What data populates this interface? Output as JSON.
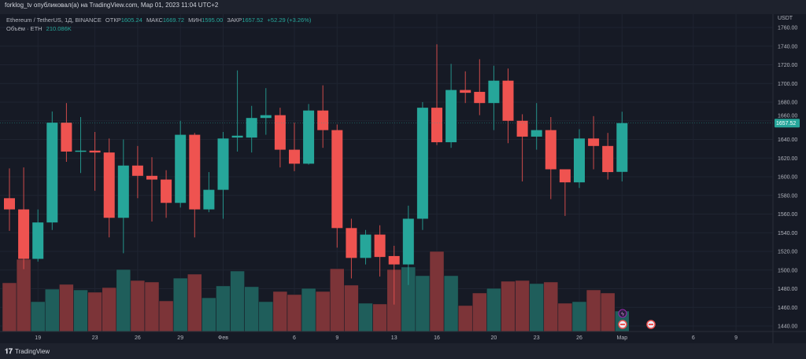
{
  "header": {
    "published": "forklog_tv опубликовал(а) на TradingView.com, Мар 01, 2023 11:04 UTC+2"
  },
  "legend": {
    "symbol": "Ethereum / TetherUS, 1Д, BINANCE",
    "open_label": "ОТКР",
    "open": "1605.24",
    "high_label": "МАКС",
    "high": "1669.72",
    "low_label": "МИН",
    "low": "1595.00",
    "close_label": "ЗАКР",
    "close": "1657.52",
    "change": "+52.29 (+3.26%)",
    "volume_label": "Объём · ETH",
    "volume": "210.086K"
  },
  "footer": {
    "brand": "TradingView"
  },
  "colors": {
    "up": "#26a69a",
    "down": "#ef5350",
    "background": "#161a25",
    "grid": "#1f2431"
  },
  "chart_data": {
    "type": "candlestick",
    "currency": "USDT",
    "ylim": [
      1430,
      1770
    ],
    "y_ticks": [
      "1760.00",
      "1740.00",
      "1720.00",
      "1700.00",
      "1680.00",
      "1660.00",
      "1640.00",
      "1620.00",
      "1600.00",
      "1580.00",
      "1560.00",
      "1540.00",
      "1520.00",
      "1500.00",
      "1480.00",
      "1460.00",
      "1440.00"
    ],
    "last_price": "1657.52",
    "x_ticks": [
      {
        "label": "19",
        "date": "2023-01-19"
      },
      {
        "label": "23",
        "date": "2023-01-23"
      },
      {
        "label": "26",
        "date": "2023-01-26"
      },
      {
        "label": "29",
        "date": "2023-01-29"
      },
      {
        "label": "Фев",
        "date": "2023-02-01"
      },
      {
        "label": "6",
        "date": "2023-02-06"
      },
      {
        "label": "9",
        "date": "2023-02-09"
      },
      {
        "label": "13",
        "date": "2023-02-13"
      },
      {
        "label": "16",
        "date": "2023-02-16"
      },
      {
        "label": "20",
        "date": "2023-02-20"
      },
      {
        "label": "23",
        "date": "2023-02-23"
      },
      {
        "label": "26",
        "date": "2023-02-26"
      },
      {
        "label": "Мар",
        "date": "2023-03-01"
      },
      {
        "label": "6",
        "date": "2023-03-06"
      },
      {
        "label": "9",
        "date": "2023-03-09"
      }
    ],
    "volume_unit": "K ETH",
    "candles": [
      {
        "date": "2023-01-17",
        "o": 1577,
        "h": 1609,
        "l": 1542,
        "c": 1565,
        "v": 501
      },
      {
        "date": "2023-01-18",
        "o": 1565,
        "h": 1610,
        "l": 1501,
        "c": 1512,
        "v": 743
      },
      {
        "date": "2023-01-19",
        "o": 1512,
        "h": 1565,
        "l": 1509,
        "c": 1551,
        "v": 307
      },
      {
        "date": "2023-01-20",
        "o": 1551,
        "h": 1670,
        "l": 1543,
        "c": 1658,
        "v": 436
      },
      {
        "date": "2023-01-21",
        "o": 1658,
        "h": 1679,
        "l": 1616,
        "c": 1627,
        "v": 485
      },
      {
        "date": "2023-01-22",
        "o": 1627,
        "h": 1664,
        "l": 1604,
        "c": 1628,
        "v": 428
      },
      {
        "date": "2023-01-23",
        "o": 1628,
        "h": 1648,
        "l": 1585,
        "c": 1626,
        "v": 404
      },
      {
        "date": "2023-01-24",
        "o": 1626,
        "h": 1641,
        "l": 1535,
        "c": 1556,
        "v": 452
      },
      {
        "date": "2023-01-25",
        "o": 1556,
        "h": 1640,
        "l": 1518,
        "c": 1612,
        "v": 638
      },
      {
        "date": "2023-01-26",
        "o": 1612,
        "h": 1633,
        "l": 1577,
        "c": 1601,
        "v": 525
      },
      {
        "date": "2023-01-27",
        "o": 1601,
        "h": 1621,
        "l": 1552,
        "c": 1597,
        "v": 509
      },
      {
        "date": "2023-01-28",
        "o": 1597,
        "h": 1607,
        "l": 1556,
        "c": 1572,
        "v": 315
      },
      {
        "date": "2023-01-29",
        "o": 1572,
        "h": 1660,
        "l": 1567,
        "c": 1645,
        "v": 549
      },
      {
        "date": "2023-01-30",
        "o": 1645,
        "h": 1647,
        "l": 1535,
        "c": 1565,
        "v": 590
      },
      {
        "date": "2023-01-31",
        "o": 1565,
        "h": 1605,
        "l": 1562,
        "c": 1586,
        "v": 347
      },
      {
        "date": "2023-02-01",
        "o": 1586,
        "h": 1648,
        "l": 1555,
        "c": 1641,
        "v": 469
      },
      {
        "date": "2023-02-02",
        "o": 1642,
        "h": 1714,
        "l": 1627,
        "c": 1644,
        "v": 622
      },
      {
        "date": "2023-02-03",
        "o": 1642,
        "h": 1676,
        "l": 1626,
        "c": 1663,
        "v": 461
      },
      {
        "date": "2023-02-04",
        "o": 1663,
        "h": 1695,
        "l": 1645,
        "c": 1666,
        "v": 307
      },
      {
        "date": "2023-02-05",
        "o": 1666,
        "h": 1674,
        "l": 1610,
        "c": 1629,
        "v": 412
      },
      {
        "date": "2023-02-06",
        "o": 1629,
        "h": 1658,
        "l": 1606,
        "c": 1614,
        "v": 380
      },
      {
        "date": "2023-02-07",
        "o": 1614,
        "h": 1678,
        "l": 1613,
        "c": 1671,
        "v": 444
      },
      {
        "date": "2023-02-08",
        "o": 1671,
        "h": 1698,
        "l": 1631,
        "c": 1650,
        "v": 412
      },
      {
        "date": "2023-02-09",
        "o": 1650,
        "h": 1656,
        "l": 1524,
        "c": 1545,
        "v": 646
      },
      {
        "date": "2023-02-10",
        "o": 1545,
        "h": 1555,
        "l": 1491,
        "c": 1513,
        "v": 477
      },
      {
        "date": "2023-02-11",
        "o": 1513,
        "h": 1543,
        "l": 1506,
        "c": 1538,
        "v": 291
      },
      {
        "date": "2023-02-12",
        "o": 1538,
        "h": 1548,
        "l": 1493,
        "c": 1514,
        "v": 283
      },
      {
        "date": "2023-02-13",
        "o": 1515,
        "h": 1526,
        "l": 1463,
        "c": 1506,
        "v": 638
      },
      {
        "date": "2023-02-14",
        "o": 1506,
        "h": 1569,
        "l": 1484,
        "c": 1555,
        "v": 663
      },
      {
        "date": "2023-02-15",
        "o": 1555,
        "h": 1680,
        "l": 1543,
        "c": 1674,
        "v": 574
      },
      {
        "date": "2023-02-16",
        "o": 1674,
        "h": 1742,
        "l": 1634,
        "c": 1637,
        "v": 824
      },
      {
        "date": "2023-02-17",
        "o": 1637,
        "h": 1721,
        "l": 1631,
        "c": 1693,
        "v": 574
      },
      {
        "date": "2023-02-18",
        "o": 1693,
        "h": 1713,
        "l": 1679,
        "c": 1690,
        "v": 267
      },
      {
        "date": "2023-02-19",
        "o": 1691,
        "h": 1726,
        "l": 1666,
        "c": 1679,
        "v": 396
      },
      {
        "date": "2023-02-20",
        "o": 1679,
        "h": 1719,
        "l": 1650,
        "c": 1703,
        "v": 444
      },
      {
        "date": "2023-02-21",
        "o": 1703,
        "h": 1716,
        "l": 1636,
        "c": 1660,
        "v": 517
      },
      {
        "date": "2023-02-22",
        "o": 1660,
        "h": 1667,
        "l": 1595,
        "c": 1643,
        "v": 525
      },
      {
        "date": "2023-02-23",
        "o": 1643,
        "h": 1679,
        "l": 1629,
        "c": 1650,
        "v": 493
      },
      {
        "date": "2023-02-24",
        "o": 1650,
        "h": 1664,
        "l": 1576,
        "c": 1608,
        "v": 509
      },
      {
        "date": "2023-02-25",
        "o": 1608,
        "h": 1608,
        "l": 1558,
        "c": 1594,
        "v": 291
      },
      {
        "date": "2023-02-26",
        "o": 1594,
        "h": 1651,
        "l": 1588,
        "c": 1641,
        "v": 307
      },
      {
        "date": "2023-02-27",
        "o": 1641,
        "h": 1665,
        "l": 1608,
        "c": 1633,
        "v": 428
      },
      {
        "date": "2023-02-28",
        "o": 1633,
        "h": 1647,
        "l": 1597,
        "c": 1605,
        "v": 396
      },
      {
        "date": "2023-03-01",
        "o": 1605.24,
        "h": 1669.72,
        "l": 1595.0,
        "c": 1657.52,
        "v": 210.086
      }
    ]
  }
}
